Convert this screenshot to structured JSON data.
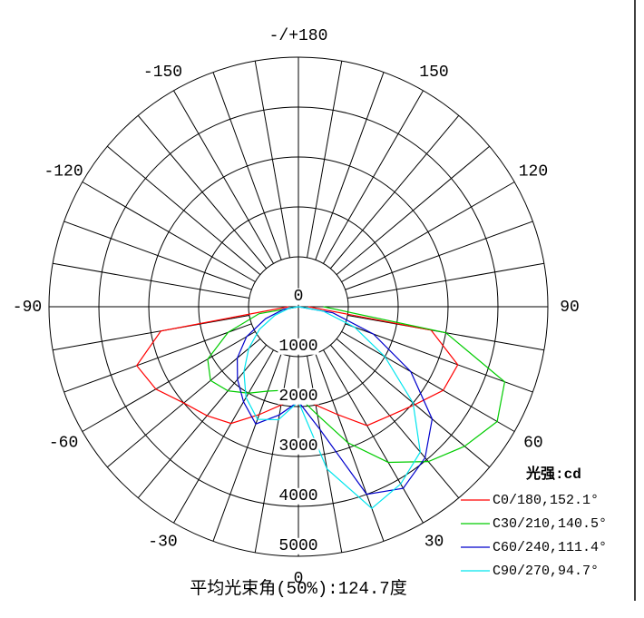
{
  "chart_data": {
    "type": "polar",
    "theta": [
      -90,
      -80,
      -70,
      -60,
      -50,
      -40,
      -30,
      -20,
      -10,
      0,
      10,
      20,
      30,
      40,
      50,
      60,
      70,
      80,
      90
    ],
    "series": [
      {
        "name": "C0/180,152.1°",
        "color": "#ff0000",
        "values": [
          200,
          2800,
          3450,
          3300,
          3000,
          2850,
          2700,
          2300,
          2000,
          1800,
          2000,
          2300,
          2750,
          2850,
          3050,
          3350,
          3400,
          2700,
          200
        ]
      },
      {
        "name": "C30/210,140.5°",
        "color": "#00cc00",
        "values": [
          0,
          800,
          1500,
          2100,
          2300,
          2200,
          2000,
          1800,
          1700,
          1800,
          2200,
          2900,
          3600,
          4050,
          4350,
          4600,
          4400,
          3000,
          500
        ]
      },
      {
        "name": "C60/240,111.4°",
        "color": "#0000cc",
        "values": [
          0,
          300,
          700,
          1200,
          1600,
          1900,
          2200,
          2500,
          2200,
          1900,
          2500,
          4000,
          4200,
          3950,
          3500,
          2600,
          1600,
          700,
          0
        ]
      },
      {
        "name": "C90/270,94.7°",
        "color": "#00e5ee",
        "values": [
          0,
          200,
          500,
          900,
          1300,
          1700,
          2100,
          2400,
          2300,
          1900,
          3300,
          4300,
          4100,
          3800,
          3000,
          2000,
          1200,
          500,
          0
        ]
      }
    ],
    "rlim": [
      0,
      5000
    ],
    "rticks": [
      0,
      1000,
      2000,
      3000,
      4000,
      5000
    ],
    "thetaticks": [
      0,
      30,
      60,
      90,
      120,
      150,
      {
        "value": 180,
        "label": "-/+180"
      },
      -150,
      -120,
      -90,
      -60,
      -30
    ],
    "grid_angle_step": 10,
    "legend_title": "光强:cd",
    "annotation": "平均光束角(50%):124.7度"
  }
}
